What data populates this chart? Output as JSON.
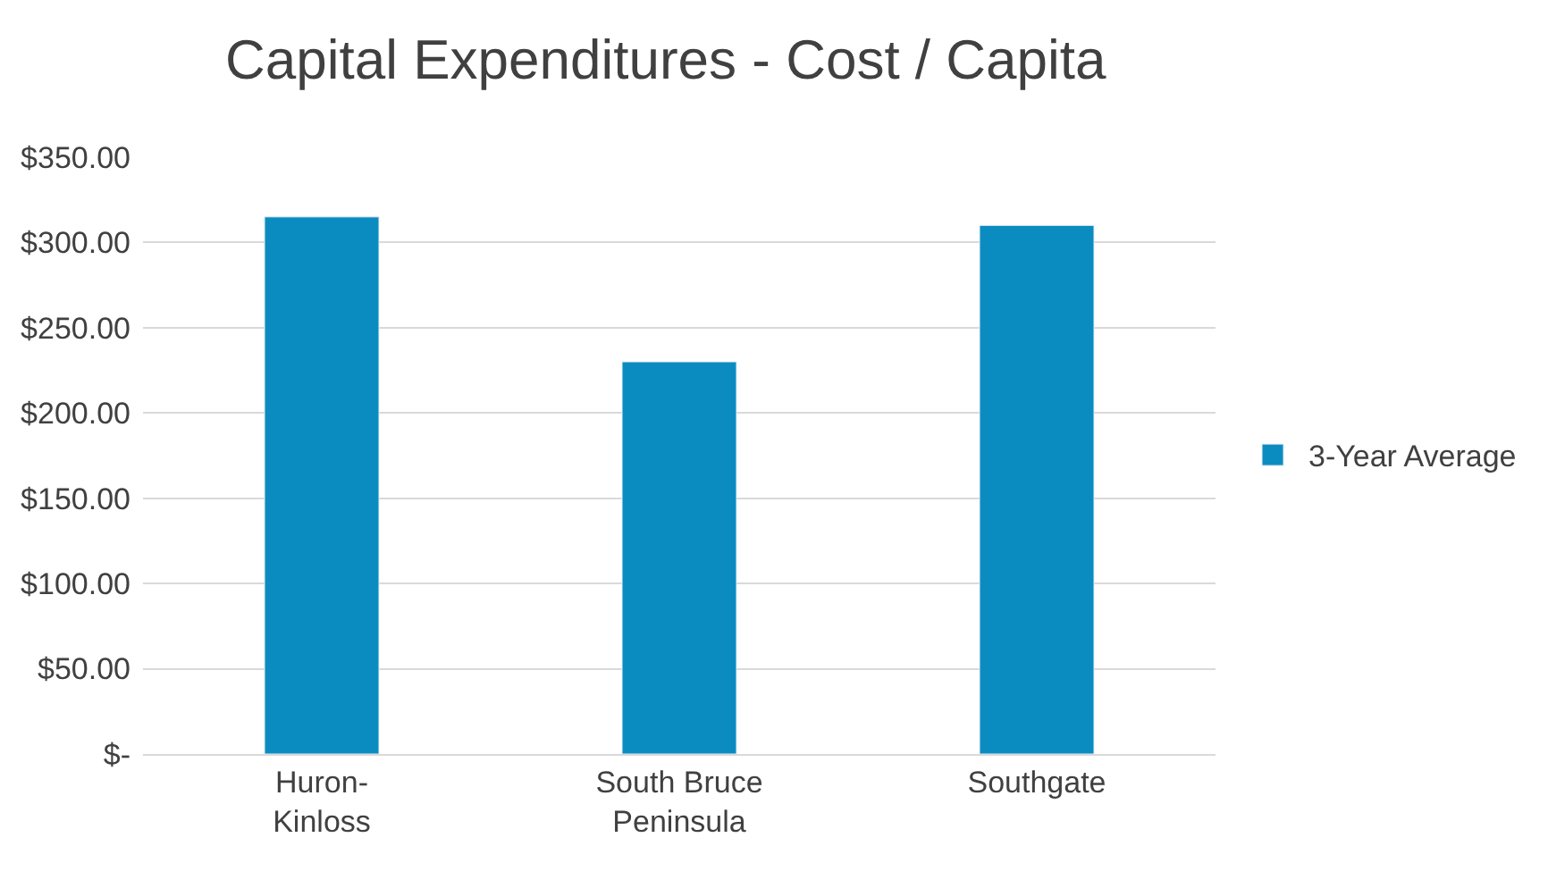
{
  "chart_data": {
    "type": "bar",
    "title": "Capital Expenditures - Cost / Capita",
    "categories": [
      "Huron-Kinloss",
      "South Bruce Peninsula",
      "Southgate"
    ],
    "series": [
      {
        "name": "3-Year Average",
        "color": "#0b8cc1",
        "values": [
          315,
          230,
          310
        ]
      }
    ],
    "ylim": [
      0,
      350
    ],
    "yticks": [
      {
        "value": 0,
        "label": "$-"
      },
      {
        "value": 50,
        "label": "$50.00"
      },
      {
        "value": 100,
        "label": "$100.00"
      },
      {
        "value": 150,
        "label": "$150.00"
      },
      {
        "value": 200,
        "label": "$200.00"
      },
      {
        "value": 250,
        "label": "$250.00"
      },
      {
        "value": 300,
        "label": "$300.00"
      },
      {
        "value": 350,
        "label": "$350.00"
      }
    ],
    "grid": "y",
    "legend": "right"
  }
}
